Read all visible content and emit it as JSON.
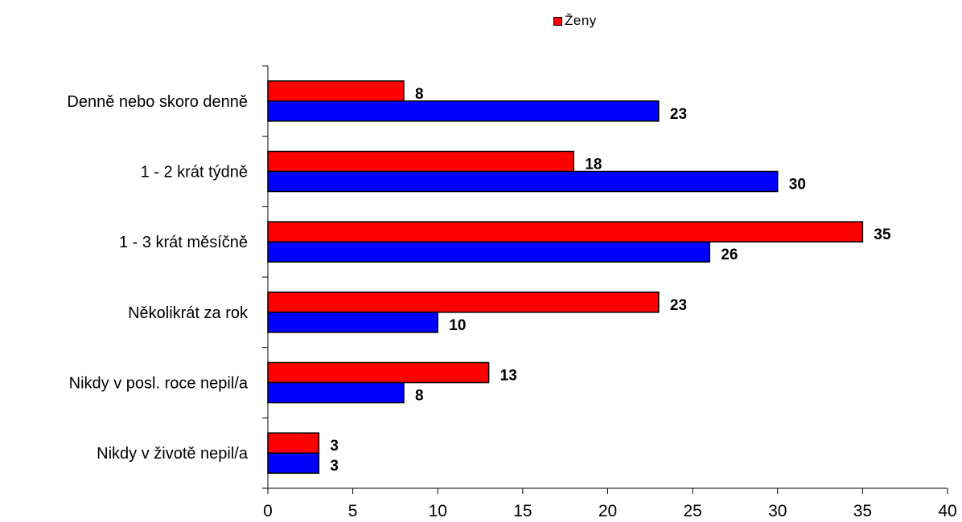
{
  "chart_data": {
    "type": "bar",
    "orientation": "horizontal",
    "categories": [
      "Denně nebo skoro denně",
      "1 - 2 krát týdně",
      "1 - 3 krát měsíčně",
      "Několikrát za rok",
      "Nikdy v posl. roce nepil/a",
      "Nikdy v životě nepil/a"
    ],
    "series": [
      {
        "name": "Ženy",
        "color": "#ff0000",
        "values": [
          8,
          18,
          35,
          23,
          13,
          3
        ]
      },
      {
        "color": "#0000ff",
        "values": [
          23,
          30,
          26,
          10,
          8,
          3
        ]
      }
    ],
    "xlim": [
      0,
      40
    ],
    "x_ticks": [
      0,
      5,
      10,
      15,
      20,
      25,
      30,
      35,
      40
    ],
    "legend_position": "top-center",
    "grid": false,
    "data_labels": true
  }
}
